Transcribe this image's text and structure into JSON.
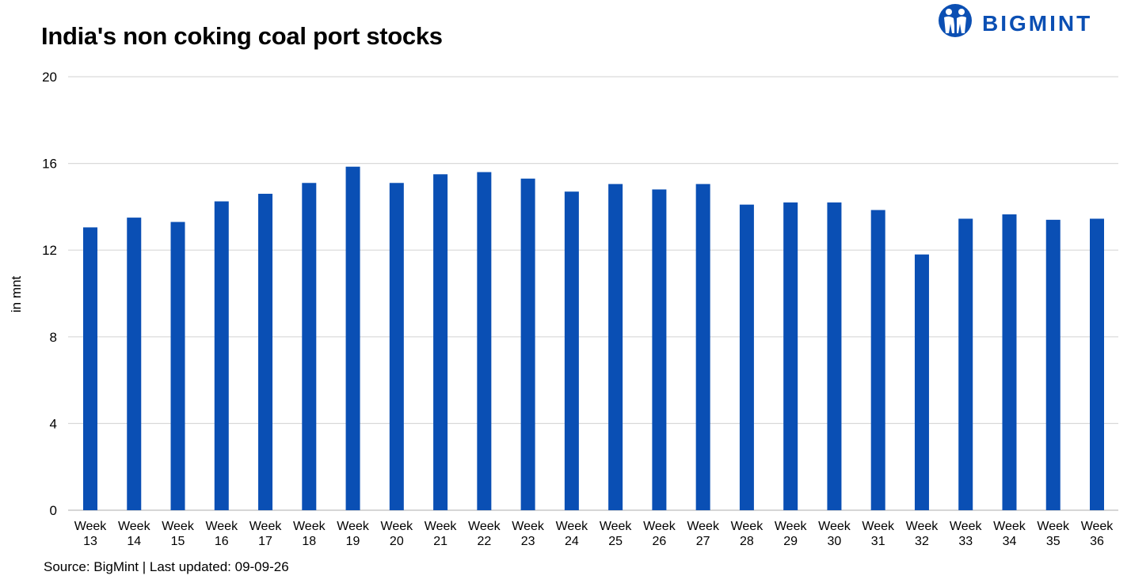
{
  "title": "India's non coking coal port stocks",
  "logo": {
    "text": "BIGMINT",
    "icon": "bigmint-people-icon",
    "color": "#0b4fb3"
  },
  "source": "Source: BigMint | Last updated: 09-09-26",
  "chart_data": {
    "type": "bar",
    "title": "India's non coking coal port stocks",
    "xlabel": "",
    "ylabel": "in mnt",
    "ylim": [
      0,
      20
    ],
    "yticks": [
      0,
      4,
      8,
      12,
      16,
      20
    ],
    "grid": true,
    "bar_color": "#0a4fb4",
    "categories": [
      [
        "Week",
        "13"
      ],
      [
        "Week",
        "14"
      ],
      [
        "Week",
        "15"
      ],
      [
        "Week",
        "16"
      ],
      [
        "Week",
        "17"
      ],
      [
        "Week",
        "18"
      ],
      [
        "Week",
        "19"
      ],
      [
        "Week",
        "20"
      ],
      [
        "Week",
        "21"
      ],
      [
        "Week",
        "22"
      ],
      [
        "Week",
        "23"
      ],
      [
        "Week",
        "24"
      ],
      [
        "Week",
        "25"
      ],
      [
        "Week",
        "26"
      ],
      [
        "Week",
        "27"
      ],
      [
        "Week",
        "28"
      ],
      [
        "Week",
        "29"
      ],
      [
        "Week",
        "30"
      ],
      [
        "Week",
        "31"
      ],
      [
        "Week",
        "32"
      ],
      [
        "Week",
        "33"
      ],
      [
        "Week",
        "34"
      ],
      [
        "Week",
        "35"
      ],
      [
        "Week",
        "36"
      ]
    ],
    "values": [
      13.05,
      13.5,
      13.3,
      14.25,
      14.6,
      15.1,
      15.85,
      15.1,
      15.5,
      15.6,
      15.3,
      14.7,
      15.05,
      14.8,
      15.05,
      14.1,
      14.2,
      14.2,
      13.85,
      11.8,
      13.45,
      13.65,
      13.4,
      13.45
    ]
  }
}
